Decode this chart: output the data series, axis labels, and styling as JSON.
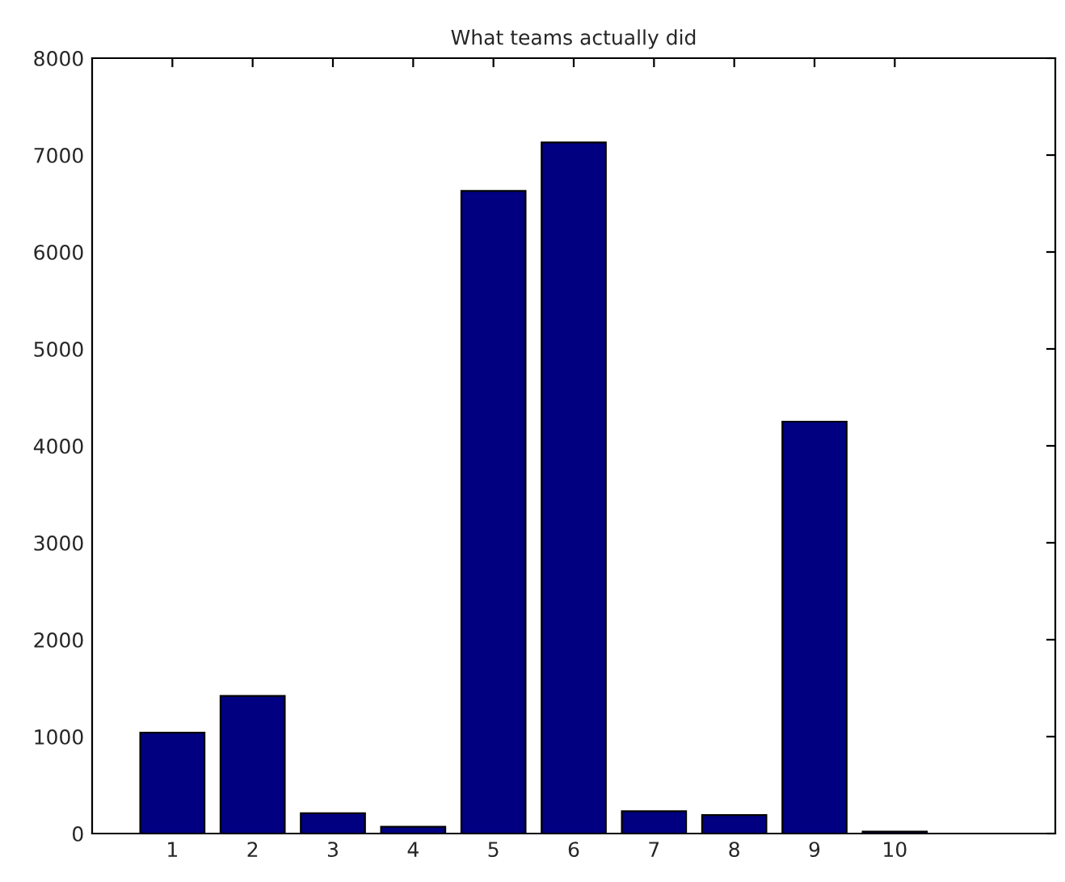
{
  "chart_data": {
    "type": "bar",
    "title": "What teams actually did",
    "x": [
      1,
      2,
      3,
      4,
      5,
      6,
      7,
      8,
      9,
      10
    ],
    "values": [
      1040,
      1420,
      210,
      70,
      6630,
      7130,
      230,
      190,
      4250,
      20
    ],
    "color": "#000080",
    "xlim": [
      0,
      12
    ],
    "xticks": [
      1,
      2,
      3,
      4,
      5,
      6,
      7,
      8,
      9,
      10
    ],
    "ylim": [
      0,
      8000
    ],
    "yticks": [
      0,
      1000,
      2000,
      3000,
      4000,
      5000,
      6000,
      7000,
      8000
    ],
    "grid": false
  }
}
